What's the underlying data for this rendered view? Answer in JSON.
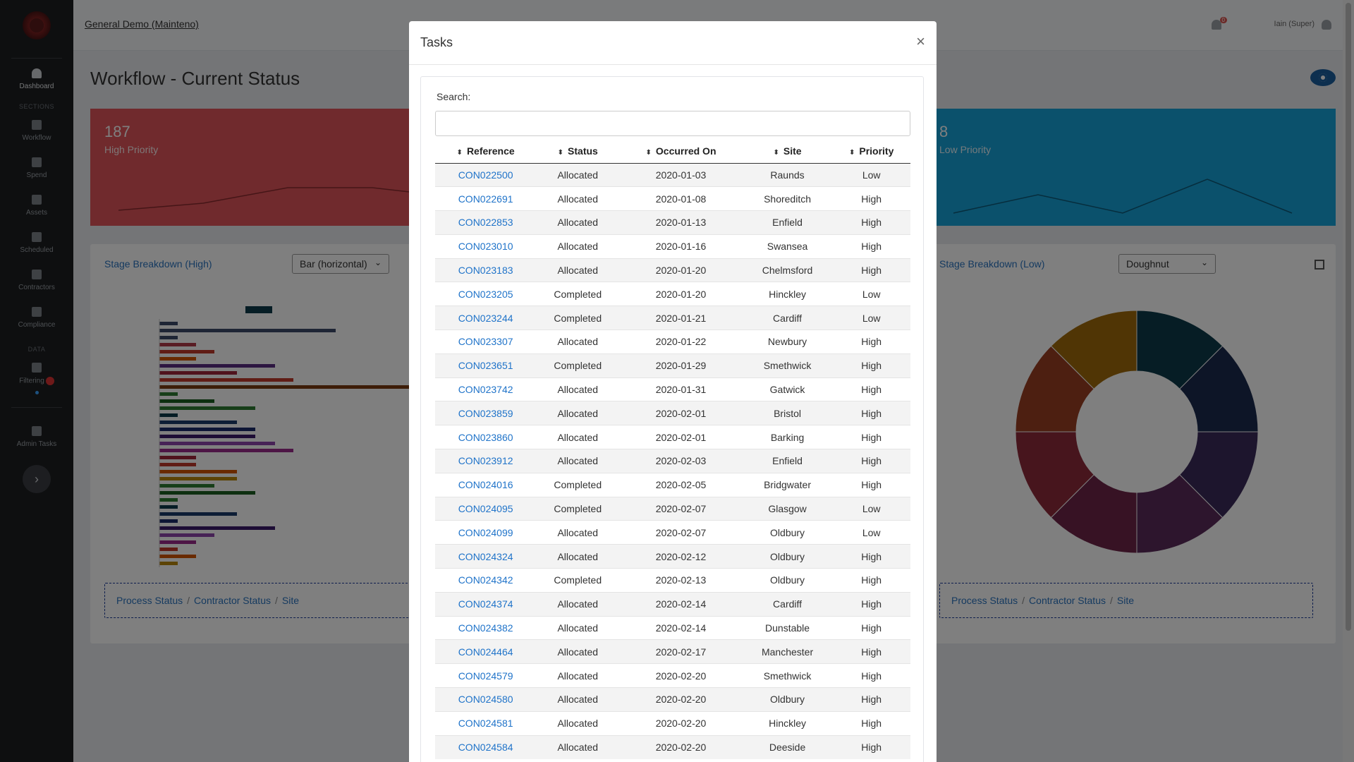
{
  "topbar": {
    "org": "General Demo (Mainteno)",
    "notifications": "0",
    "user": "Iain (Super)"
  },
  "sidebar": {
    "items": [
      {
        "label": "Dashboard",
        "icon": "dashboard-icon"
      },
      {
        "section": "SECTIONS"
      },
      {
        "label": "Workflow",
        "icon": "list-icon"
      },
      {
        "label": "Spend",
        "icon": "pound-icon"
      },
      {
        "label": "Assets",
        "icon": "grid-icon"
      },
      {
        "label": "Scheduled",
        "icon": "calendar-icon"
      },
      {
        "label": "Contractors",
        "icon": "truck-icon"
      },
      {
        "label": "Compliance",
        "icon": "check-icon"
      },
      {
        "section": "DATA"
      },
      {
        "label": "Filtering",
        "icon": "filter-icon"
      },
      {
        "label": "Admin Tasks",
        "icon": "cog-icon"
      }
    ]
  },
  "page": {
    "title": "Workflow - Current Status"
  },
  "kpi_high": {
    "value": "187",
    "label": "High Priority"
  },
  "kpi_low": {
    "value": "8",
    "label": "Low Priority"
  },
  "card_left": {
    "title": "Stage Breakdown (High)",
    "select": "Bar (horizontal)"
  },
  "card_right": {
    "title": "Stage Breakdown (Low)",
    "select": "Doughnut"
  },
  "breadcrumbs": [
    "Process Status",
    "Contractor Status",
    "Site"
  ],
  "modal": {
    "title": "Tasks",
    "close": "×",
    "search_label": "Search:",
    "columns": [
      "Reference",
      "Status",
      "Occurred On",
      "Site",
      "Priority"
    ],
    "rows": [
      [
        "CON022500",
        "Allocated",
        "2020-01-03",
        "Raunds",
        "Low"
      ],
      [
        "CON022691",
        "Allocated",
        "2020-01-08",
        "Shoreditch",
        "High"
      ],
      [
        "CON022853",
        "Allocated",
        "2020-01-13",
        "Enfield",
        "High"
      ],
      [
        "CON023010",
        "Allocated",
        "2020-01-16",
        "Swansea",
        "High"
      ],
      [
        "CON023183",
        "Allocated",
        "2020-01-20",
        "Chelmsford",
        "High"
      ],
      [
        "CON023205",
        "Completed",
        "2020-01-20",
        "Hinckley",
        "Low"
      ],
      [
        "CON023244",
        "Completed",
        "2020-01-21",
        "Cardiff",
        "Low"
      ],
      [
        "CON023307",
        "Allocated",
        "2020-01-22",
        "Newbury",
        "High"
      ],
      [
        "CON023651",
        "Completed",
        "2020-01-29",
        "Smethwick",
        "High"
      ],
      [
        "CON023742",
        "Allocated",
        "2020-01-31",
        "Gatwick",
        "High"
      ],
      [
        "CON023859",
        "Allocated",
        "2020-02-01",
        "Bristol",
        "High"
      ],
      [
        "CON023860",
        "Allocated",
        "2020-02-01",
        "Barking",
        "High"
      ],
      [
        "CON023912",
        "Allocated",
        "2020-02-03",
        "Enfield",
        "High"
      ],
      [
        "CON024016",
        "Completed",
        "2020-02-05",
        "Bridgwater",
        "High"
      ],
      [
        "CON024095",
        "Completed",
        "2020-02-07",
        "Glasgow",
        "Low"
      ],
      [
        "CON024099",
        "Allocated",
        "2020-02-07",
        "Oldbury",
        "Low"
      ],
      [
        "CON024324",
        "Allocated",
        "2020-02-12",
        "Oldbury",
        "High"
      ],
      [
        "CON024342",
        "Completed",
        "2020-02-13",
        "Oldbury",
        "High"
      ],
      [
        "CON024374",
        "Allocated",
        "2020-02-14",
        "Cardiff",
        "High"
      ],
      [
        "CON024382",
        "Allocated",
        "2020-02-14",
        "Dunstable",
        "High"
      ],
      [
        "CON024464",
        "Allocated",
        "2020-02-17",
        "Manchester",
        "High"
      ],
      [
        "CON024579",
        "Allocated",
        "2020-02-20",
        "Smethwick",
        "High"
      ],
      [
        "CON024580",
        "Allocated",
        "2020-02-20",
        "Oldbury",
        "High"
      ],
      [
        "CON024581",
        "Allocated",
        "2020-02-20",
        "Hinckley",
        "High"
      ],
      [
        "CON024584",
        "Allocated",
        "2020-02-20",
        "Deeside",
        "High"
      ]
    ]
  },
  "colors": {
    "high": "#e0555a",
    "low": "#17a2d8",
    "link": "#1f73c9"
  }
}
